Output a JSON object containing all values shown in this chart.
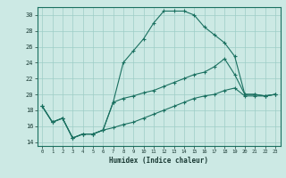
{
  "title": "",
  "xlabel": "Humidex (Indice chaleur)",
  "xlim": [
    -0.5,
    23.5
  ],
  "ylim": [
    13.5,
    31
  ],
  "yticks": [
    14,
    16,
    18,
    20,
    22,
    24,
    26,
    28,
    30
  ],
  "xticks": [
    0,
    1,
    2,
    3,
    4,
    5,
    6,
    7,
    8,
    9,
    10,
    11,
    12,
    13,
    14,
    15,
    16,
    17,
    18,
    19,
    20,
    21,
    22,
    23
  ],
  "background_color": "#cce9e4",
  "line_color": "#1a7060",
  "grid_color": "#9dcdc6",
  "line1_x": [
    0,
    1,
    2,
    3,
    4,
    5,
    6,
    7,
    8,
    9,
    10,
    11,
    12,
    13,
    14,
    15,
    16,
    17,
    18,
    19,
    20,
    21,
    22,
    23
  ],
  "line1_y": [
    18.5,
    16.5,
    17.0,
    14.5,
    15.0,
    15.0,
    15.5,
    19.0,
    24.0,
    25.5,
    27.0,
    29.0,
    30.5,
    30.5,
    30.5,
    30.0,
    28.5,
    27.5,
    26.5,
    24.8,
    20.0,
    20.0,
    19.8,
    20.0
  ],
  "line2_x": [
    0,
    1,
    2,
    3,
    4,
    5,
    6,
    7,
    8,
    9,
    10,
    11,
    12,
    13,
    14,
    15,
    16,
    17,
    18,
    19,
    20,
    21,
    22,
    23
  ],
  "line2_y": [
    18.5,
    16.5,
    17.0,
    14.5,
    15.0,
    15.0,
    15.5,
    19.0,
    19.5,
    19.8,
    20.2,
    20.5,
    21.0,
    21.5,
    22.0,
    22.5,
    22.8,
    23.5,
    24.5,
    22.5,
    20.0,
    20.0,
    19.8,
    20.0
  ],
  "line3_x": [
    0,
    1,
    2,
    3,
    4,
    5,
    6,
    7,
    8,
    9,
    10,
    11,
    12,
    13,
    14,
    15,
    16,
    17,
    18,
    19,
    20,
    21,
    22,
    23
  ],
  "line3_y": [
    18.5,
    16.5,
    17.0,
    14.5,
    15.0,
    15.0,
    15.5,
    15.8,
    16.2,
    16.5,
    17.0,
    17.5,
    18.0,
    18.5,
    19.0,
    19.5,
    19.8,
    20.0,
    20.5,
    20.8,
    19.8,
    19.8,
    19.8,
    20.0
  ]
}
